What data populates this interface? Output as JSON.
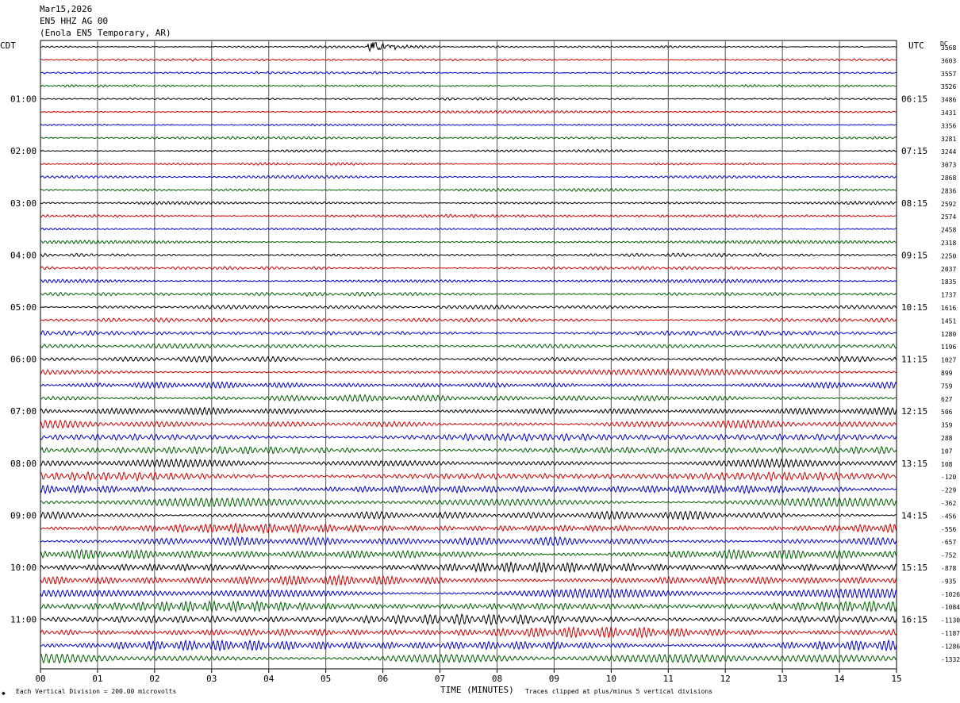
{
  "header": {
    "date": "Mar15,2026",
    "channel": "EN5 HHZ AG 00",
    "station": "(Enola EN5 Temporary, AR)"
  },
  "left_timezone": "CDT",
  "right_timezone": "UTC",
  "right_corner_label": "DC",
  "footer": {
    "scale_note": "Each Vertical Division =  200.00 microvolts",
    "x_axis_title": "TIME (MINUTES)",
    "clip_note": "Traces clipped at plus/minus 5 vertical divisions"
  },
  "colors": {
    "trace_cycle": [
      "#000000",
      "#d00000",
      "#0000d0",
      "#006000"
    ],
    "grid": "#000000"
  },
  "chart_data": {
    "type": "line",
    "title": "",
    "xlabel": "TIME (MINUTES)",
    "ylabel": "",
    "xlim": [
      0,
      15
    ],
    "x_ticks": [
      "00",
      "01",
      "02",
      "03",
      "04",
      "05",
      "06",
      "07",
      "08",
      "09",
      "10",
      "11",
      "12",
      "13",
      "14",
      "15"
    ],
    "grid": true,
    "minutes_per_line": 15,
    "lines_per_hour": 4,
    "left_time_labels": [
      "01:00",
      "02:00",
      "03:00",
      "04:00",
      "05:00",
      "06:00",
      "07:00",
      "08:00",
      "09:00",
      "10:00",
      "11:00"
    ],
    "right_time_labels": [
      "06:15",
      "07:15",
      "08:15",
      "09:15",
      "10:15",
      "11:15",
      "12:15",
      "13:15",
      "14:15",
      "15:15",
      "16:15"
    ],
    "left_label_first_line": 4,
    "right_label_first_line": 4,
    "line_dc_offsets": [
      3568,
      3603,
      3557,
      3526,
      3486,
      3431,
      3356,
      3281,
      3244,
      3073,
      2868,
      2836,
      2592,
      2574,
      2458,
      2318,
      2250,
      2037,
      1835,
      1737,
      1616,
      1451,
      1280,
      1196,
      1027,
      899,
      759,
      627,
      506,
      359,
      288,
      107,
      108,
      -120,
      -229,
      -362,
      -456,
      -556,
      -657,
      -752,
      -878,
      -935,
      -1026,
      -1084,
      -1130,
      -1187,
      -1286,
      -1332
    ],
    "line_amplitude_levels": [
      1.0,
      1.0,
      1.0,
      1.0,
      1.0,
      1.1,
      1.1,
      1.2,
      1.2,
      1.2,
      1.3,
      1.3,
      1.3,
      1.4,
      1.4,
      1.5,
      1.5,
      1.6,
      1.7,
      1.8,
      1.9,
      2.0,
      2.1,
      2.2,
      2.4,
      2.6,
      2.8,
      3.0,
      3.2,
      3.4,
      3.5,
      3.6,
      3.7,
      3.8,
      3.9,
      4.0,
      4.0,
      4.1,
      4.2,
      4.3,
      4.4,
      4.5,
      4.5,
      4.6,
      4.6,
      4.6,
      4.7,
      4.7
    ],
    "events": [
      {
        "line": 0,
        "start_min": 5.7,
        "end_min": 7.2,
        "peak": 9
      }
    ]
  }
}
